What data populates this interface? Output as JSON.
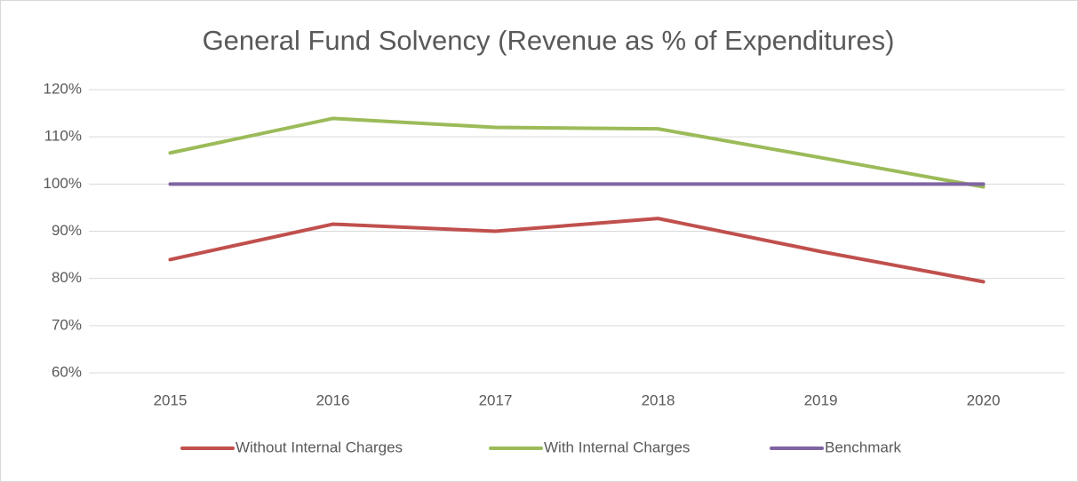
{
  "chart_data": {
    "type": "line",
    "title": "General Fund Solvency (Revenue as % of Expenditures)",
    "categories": [
      "2015",
      "2016",
      "2017",
      "2018",
      "2019",
      "2020"
    ],
    "series": [
      {
        "name": "Without Internal Charges",
        "color": "#c0504d",
        "values": [
          84.0,
          91.5,
          90.0,
          92.7,
          85.7,
          79.3
        ]
      },
      {
        "name": "With Internal Charges",
        "color": "#9bbb59",
        "values": [
          106.6,
          113.9,
          112.0,
          111.7,
          105.6,
          99.4
        ]
      },
      {
        "name": "Benchmark",
        "color": "#8064a2",
        "values": [
          100,
          100,
          100,
          100,
          100,
          100
        ]
      }
    ],
    "ylim": [
      60,
      120
    ],
    "yticks": [
      {
        "value": 60,
        "label": "60%"
      },
      {
        "value": 70,
        "label": "70%"
      },
      {
        "value": 80,
        "label": "80%"
      },
      {
        "value": 90,
        "label": "90%"
      },
      {
        "value": 100,
        "label": "100%"
      },
      {
        "value": 110,
        "label": "110%"
      },
      {
        "value": 120,
        "label": "120%"
      }
    ],
    "grid": true,
    "legend": "bottom"
  }
}
